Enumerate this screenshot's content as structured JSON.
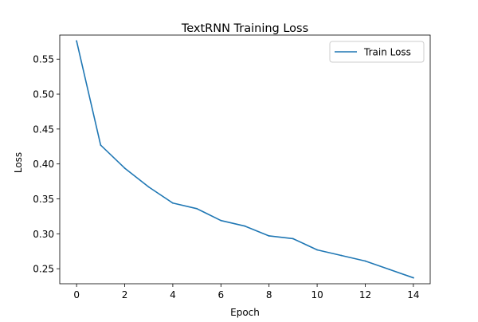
{
  "chart_data": {
    "type": "line",
    "title": "TextRNN Training Loss",
    "xlabel": "Epoch",
    "ylabel": "Loss",
    "xlim": [
      -0.7,
      14.7
    ],
    "ylim": [
      0.2285,
      0.5845
    ],
    "x_ticks": [
      0,
      2,
      4,
      6,
      8,
      10,
      12,
      14
    ],
    "x_tick_labels": [
      "0",
      "2",
      "4",
      "6",
      "8",
      "10",
      "12",
      "14"
    ],
    "y_ticks": [
      0.25,
      0.3,
      0.35,
      0.4,
      0.45,
      0.5,
      0.55
    ],
    "y_tick_labels": [
      "0.25",
      "0.30",
      "0.35",
      "0.40",
      "0.45",
      "0.50",
      "0.55"
    ],
    "grid": false,
    "legend_position": "top-right",
    "series": [
      {
        "name": "Train Loss",
        "color": "#1f77b4",
        "x": [
          0,
          1,
          2,
          3,
          4,
          5,
          6,
          7,
          8,
          9,
          10,
          11,
          12,
          13,
          14
        ],
        "values": [
          0.576,
          0.427,
          0.394,
          0.367,
          0.344,
          0.336,
          0.319,
          0.311,
          0.297,
          0.293,
          0.277,
          0.269,
          0.261,
          0.249,
          0.237
        ]
      }
    ]
  }
}
